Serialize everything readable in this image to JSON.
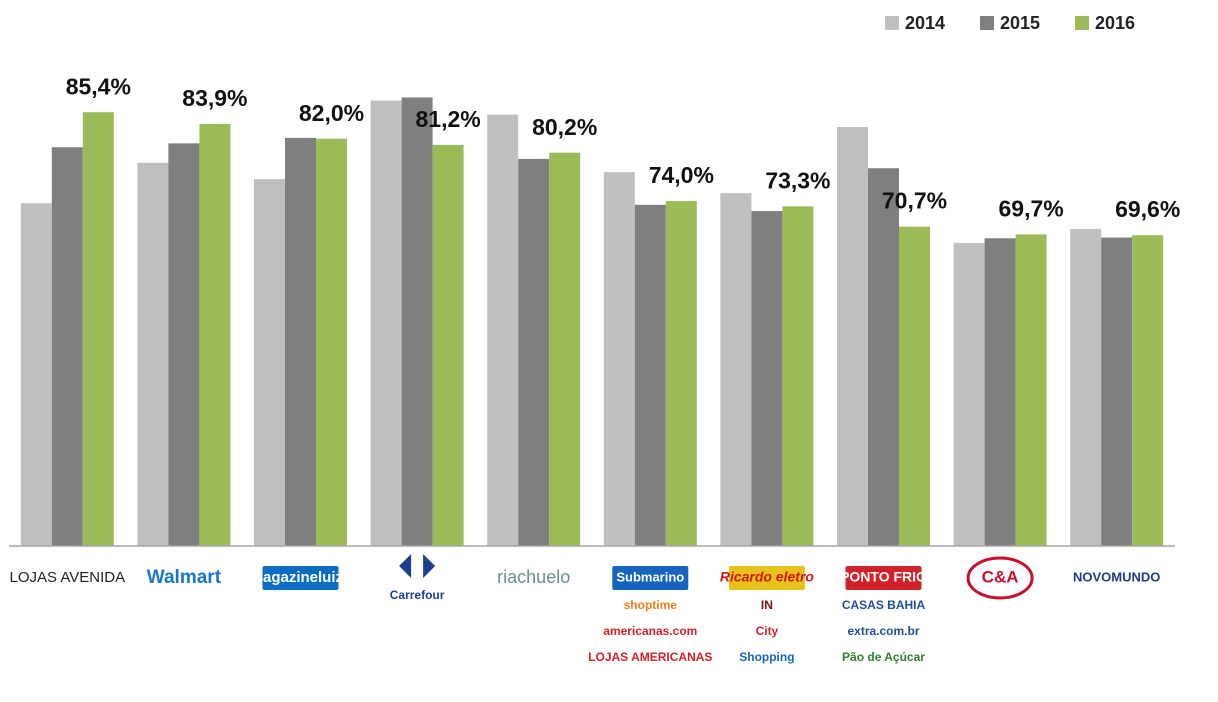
{
  "chart_data": {
    "type": "bar",
    "categories": [
      "LOJAS AVENIDA",
      "Walmart",
      "magazineluiza",
      "Carrefour",
      "riachuelo",
      "Submarino",
      "Ricardo eletro",
      "PONTO FRIO",
      "C&A",
      "NOVOMUNDO"
    ],
    "category_sublabels": [
      [],
      [],
      [],
      [],
      [],
      [
        "shoptime",
        "americanas.com",
        "LOJAS AMERICANAS"
      ],
      [
        "IN",
        "City",
        "Shopping"
      ],
      [
        "CASAS BAHIA",
        "extra.com.br",
        "Pão de Açúcar"
      ],
      [],
      []
    ],
    "series": [
      {
        "name": "2014",
        "color": "#bfbfbf",
        "values": [
          73.7,
          78.9,
          76.8,
          86.9,
          85.1,
          77.7,
          75.0,
          83.5,
          68.6,
          70.4
        ]
      },
      {
        "name": "2015",
        "color": "#7f7f7f",
        "values": [
          80.9,
          81.4,
          82.1,
          87.3,
          79.4,
          73.5,
          72.7,
          78.2,
          69.2,
          69.3
        ]
      },
      {
        "name": "2016",
        "color": "#9bbb59",
        "values": [
          85.4,
          83.9,
          82.0,
          81.2,
          80.2,
          74.0,
          73.3,
          70.7,
          69.7,
          69.6
        ],
        "value_labels": [
          "85,4%",
          "83,9%",
          "82,0%",
          "81,2%",
          "80,2%",
          "74,0%",
          "73,3%",
          "70,7%",
          "69,7%",
          "69,6%"
        ]
      }
    ],
    "ylim": [
      29.65,
      88
    ],
    "legend": "top-right",
    "grid": false
  }
}
